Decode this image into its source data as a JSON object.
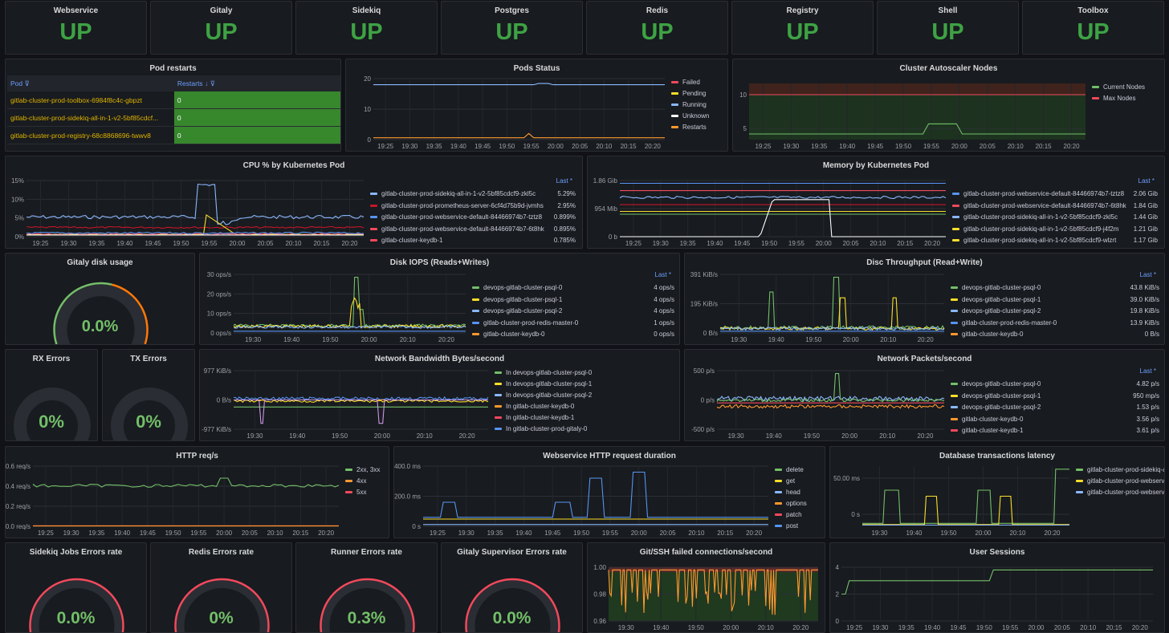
{
  "status_panels": [
    {
      "title": "Webservice",
      "value": "UP"
    },
    {
      "title": "Gitaly",
      "value": "UP"
    },
    {
      "title": "Sidekiq",
      "value": "UP"
    },
    {
      "title": "Postgres",
      "value": "UP"
    },
    {
      "title": "Redis",
      "value": "UP"
    },
    {
      "title": "Registry",
      "value": "UP"
    },
    {
      "title": "Shell",
      "value": "UP"
    },
    {
      "title": "Toolbox",
      "value": "UP"
    }
  ],
  "pod_restarts": {
    "title": "Pod restarts",
    "col_pod": "Pod",
    "col_restarts": "Restarts",
    "rows": [
      {
        "pod": "gitlab-cluster-prod-toolbox-6984f8c4c-gbpzt",
        "restarts": "0"
      },
      {
        "pod": "gitlab-cluster-prod-sidekiq-all-in-1-v2-5bf85cdcf...",
        "restarts": "0"
      },
      {
        "pod": "gitlab-cluster-prod-registry-68c8868696-twwv8",
        "restarts": "0"
      }
    ]
  },
  "colors": {
    "green": "#73bf69",
    "yellow": "#fade2a",
    "blue": "#8ab8ff",
    "orange": "#ff9830",
    "red": "#f2495c",
    "darkred": "#c4162a",
    "purple": "#ca95e5",
    "white": "#ffffff",
    "lightblue": "#5794f2"
  },
  "panels": {
    "pods_status": {
      "title": "Pods Status"
    },
    "autoscaler": {
      "title": "Cluster Autoscaler Nodes"
    },
    "cpu": {
      "title": "CPU % by Kubernetes Pod",
      "legend_head": "Last *"
    },
    "memory": {
      "title": "Memory by Kubernetes Pod",
      "legend_head": "Last *"
    },
    "gitaly_disk": {
      "title": "Gitaly disk usage",
      "value": "0.0%",
      "level": 0
    },
    "disk_iops": {
      "title": "Disk IOPS (Reads+Writes)",
      "legend_head": "Last *"
    },
    "disc_throughput": {
      "title": "Disc Throughput (Read+Write)",
      "legend_head": "Last *"
    },
    "rx_errors": {
      "title": "RX Errors",
      "value": "0%",
      "level": 0
    },
    "tx_errors": {
      "title": "TX Errors",
      "value": "0%",
      "level": 0
    },
    "net_bandwidth": {
      "title": "Network Bandwidth Bytes/second"
    },
    "net_packets": {
      "title": "Network Packets/second",
      "legend_head": "Last *"
    },
    "http_req": {
      "title": "HTTP req/s"
    },
    "web_duration": {
      "title": "Webservice HTTP request duration"
    },
    "db_latency": {
      "title": "Database transactions latency"
    },
    "sidekiq_err": {
      "title": "Sidekiq Jobs Errors rate",
      "value": "0.0%",
      "level": 0
    },
    "redis_err": {
      "title": "Redis Errors rate",
      "value": "0%",
      "level": 0
    },
    "runner_err": {
      "title": "Runner Errors rate",
      "value": "0.3%",
      "level": 0.3
    },
    "gitaly_sup_err": {
      "title": "Gitaly Supervisor Errors rate",
      "value": "0.0%",
      "level": 0
    },
    "git_ssh": {
      "title": "Git/SSH failed connections/second"
    },
    "user_sessions": {
      "title": "User Sessions"
    }
  },
  "time_ticks_a": [
    "19:25",
    "19:30",
    "19:35",
    "19:40",
    "19:45",
    "19:50",
    "19:55",
    "20:00",
    "20:05",
    "20:10",
    "20:15",
    "20:20"
  ],
  "time_ticks_b": [
    "19:30",
    "19:40",
    "19:50",
    "20:00",
    "20:10",
    "20:20"
  ],
  "chart_data": [
    {
      "type": "line",
      "panel": "pods_status",
      "yticks": [
        "20",
        "10",
        "0"
      ],
      "series": [
        {
          "name": "Failed",
          "color": "red"
        },
        {
          "name": "Pending",
          "color": "yellow"
        },
        {
          "name": "Running",
          "color": "blue"
        },
        {
          "name": "Unknown",
          "color": "white"
        },
        {
          "name": "Restarts",
          "color": "orange"
        }
      ]
    },
    {
      "type": "area",
      "panel": "autoscaler",
      "yticks": [
        "10",
        "5"
      ],
      "series": [
        {
          "name": "Current Nodes",
          "color": "green"
        },
        {
          "name": "Max Nodes",
          "color": "red"
        }
      ]
    },
    {
      "type": "line",
      "panel": "cpu",
      "yticks": [
        "15%",
        "10%",
        "5%",
        "0%"
      ],
      "series": [
        {
          "name": "gitlab-cluster-prod-sidekiq-all-in-1-v2-5bf85cdcf9-zkl5c",
          "last": "5.29%",
          "color": "blue"
        },
        {
          "name": "gitlab-cluster-prod-prometheus-server-6cf4d75b9d-jvmhs",
          "last": "2.95%",
          "color": "darkred"
        },
        {
          "name": "gitlab-cluster-prod-webservice-default-84466974b7-tztz8",
          "last": "0.899%",
          "color": "lightblue"
        },
        {
          "name": "gitlab-cluster-prod-webservice-default-84466974b7-6t8hk",
          "last": "0.895%",
          "color": "red"
        },
        {
          "name": "gitlab-cluster-keydb-1",
          "last": "0.785%",
          "color": "red"
        }
      ]
    },
    {
      "type": "line",
      "panel": "memory",
      "yticks": [
        "1.86 Gib",
        "954 Mib",
        "0 b"
      ],
      "series": [
        {
          "name": "gitlab-cluster-prod-webservice-default-84466974b7-tztz8",
          "last": "2.06 Gib",
          "color": "lightblue"
        },
        {
          "name": "gitlab-cluster-prod-webservice-default-84466974b7-6t8hk",
          "last": "1.84 Gib",
          "color": "red"
        },
        {
          "name": "gitlab-cluster-prod-sidekiq-all-in-1-v2-5bf85cdcf9-zkl5c",
          "last": "1.44 Gib",
          "color": "blue"
        },
        {
          "name": "gitlab-cluster-prod-sidekiq-all-in-1-v2-5bf85cdcf9-j4f2m",
          "last": "1.21 Gib",
          "color": "yellow"
        },
        {
          "name": "gitlab-cluster-prod-sidekiq-all-in-1-v2-5bf85cdcf9-wlzrt",
          "last": "1.17 Gib",
          "color": "yellow"
        }
      ]
    },
    {
      "type": "line",
      "panel": "disk_iops",
      "yticks": [
        "30 ops/s",
        "20 ops/s",
        "10 ops/s",
        "0 ops/s"
      ],
      "series": [
        {
          "name": "devops-gitlab-cluster-psql-0",
          "last": "4 ops/s",
          "color": "green"
        },
        {
          "name": "devops-gitlab-cluster-psql-1",
          "last": "4 ops/s",
          "color": "yellow"
        },
        {
          "name": "devops-gitlab-cluster-psql-2",
          "last": "4 ops/s",
          "color": "blue"
        },
        {
          "name": "gitlab-cluster-prod-redis-master-0",
          "last": "1 ops/s",
          "color": "lightblue"
        },
        {
          "name": "gitlab-cluster-keydb-0",
          "last": "0 ops/s",
          "color": "orange"
        }
      ]
    },
    {
      "type": "line",
      "panel": "disc_throughput",
      "yticks": [
        "391 KiB/s",
        "195 KiB/s",
        "0 B/s"
      ],
      "series": [
        {
          "name": "devops-gitlab-cluster-psql-0",
          "last": "43.8 KiB/s",
          "color": "green"
        },
        {
          "name": "devops-gitlab-cluster-psql-1",
          "last": "39.0 KiB/s",
          "color": "yellow"
        },
        {
          "name": "devops-gitlab-cluster-psql-2",
          "last": "19.8 KiB/s",
          "color": "blue"
        },
        {
          "name": "gitlab-cluster-prod-redis-master-0",
          "last": "13.9 KiB/s",
          "color": "lightblue"
        },
        {
          "name": "gitlab-cluster-keydb-0",
          "last": "0 B/s",
          "color": "orange"
        }
      ]
    },
    {
      "type": "line",
      "panel": "net_bandwidth",
      "yticks": [
        "977 KiB/s",
        "0 B/s",
        "-977 KiB/s"
      ],
      "series": [
        {
          "name": "In devops-gitlab-cluster-psql-0",
          "color": "green"
        },
        {
          "name": "In devops-gitlab-cluster-psql-1",
          "color": "yellow"
        },
        {
          "name": "In devops-gitlab-cluster-psql-2",
          "color": "blue"
        },
        {
          "name": "In gitlab-cluster-keydb-0",
          "color": "orange"
        },
        {
          "name": "In gitlab-cluster-keydb-1",
          "color": "red"
        },
        {
          "name": "In gitlab-cluster-prod-gitaly-0",
          "color": "lightblue"
        }
      ]
    },
    {
      "type": "line",
      "panel": "net_packets",
      "yticks": [
        "500 p/s",
        "0 p/s",
        "-500 p/s"
      ],
      "series": [
        {
          "name": "devops-gitlab-cluster-psql-0",
          "last": "4.82 p/s",
          "color": "green"
        },
        {
          "name": "devops-gitlab-cluster-psql-1",
          "last": "950 mp/s",
          "color": "yellow"
        },
        {
          "name": "devops-gitlab-cluster-psql-2",
          "last": "1.53 p/s",
          "color": "blue"
        },
        {
          "name": "gitlab-cluster-keydb-0",
          "last": "3.56 p/s",
          "color": "orange"
        },
        {
          "name": "gitlab-cluster-keydb-1",
          "last": "3.61 p/s",
          "color": "red"
        }
      ]
    },
    {
      "type": "line",
      "panel": "http_req",
      "yticks": [
        "0.6 req/s",
        "0.4 req/s",
        "0.2 req/s",
        "0.0 req/s"
      ],
      "series": [
        {
          "name": "2xx, 3xx",
          "color": "green"
        },
        {
          "name": "4xx",
          "color": "orange"
        },
        {
          "name": "5xx",
          "color": "red"
        }
      ]
    },
    {
      "type": "line",
      "panel": "web_duration",
      "yticks": [
        "400.0 ms",
        "200.0 ms",
        "0 s"
      ],
      "series": [
        {
          "name": "delete",
          "color": "green"
        },
        {
          "name": "get",
          "color": "yellow"
        },
        {
          "name": "head",
          "color": "blue"
        },
        {
          "name": "options",
          "color": "orange"
        },
        {
          "name": "patch",
          "color": "red"
        },
        {
          "name": "post",
          "color": "lightblue"
        }
      ]
    },
    {
      "type": "line",
      "panel": "db_latency",
      "yticks": [
        "50.00 ms",
        "0 s"
      ],
      "series": [
        {
          "name": "gitlab-cluster-prod-sidekiq-a",
          "color": "green"
        },
        {
          "name": "gitlab-cluster-prod-webserv",
          "color": "yellow"
        },
        {
          "name": "gitlab-cluster-prod-webserv",
          "color": "blue"
        }
      ]
    },
    {
      "type": "area",
      "panel": "git_ssh",
      "yticks": [
        "1.00",
        "0.98",
        "0.96"
      ],
      "series": []
    },
    {
      "type": "line",
      "panel": "user_sessions",
      "yticks": [
        "4",
        "2",
        "0"
      ],
      "series": []
    }
  ]
}
